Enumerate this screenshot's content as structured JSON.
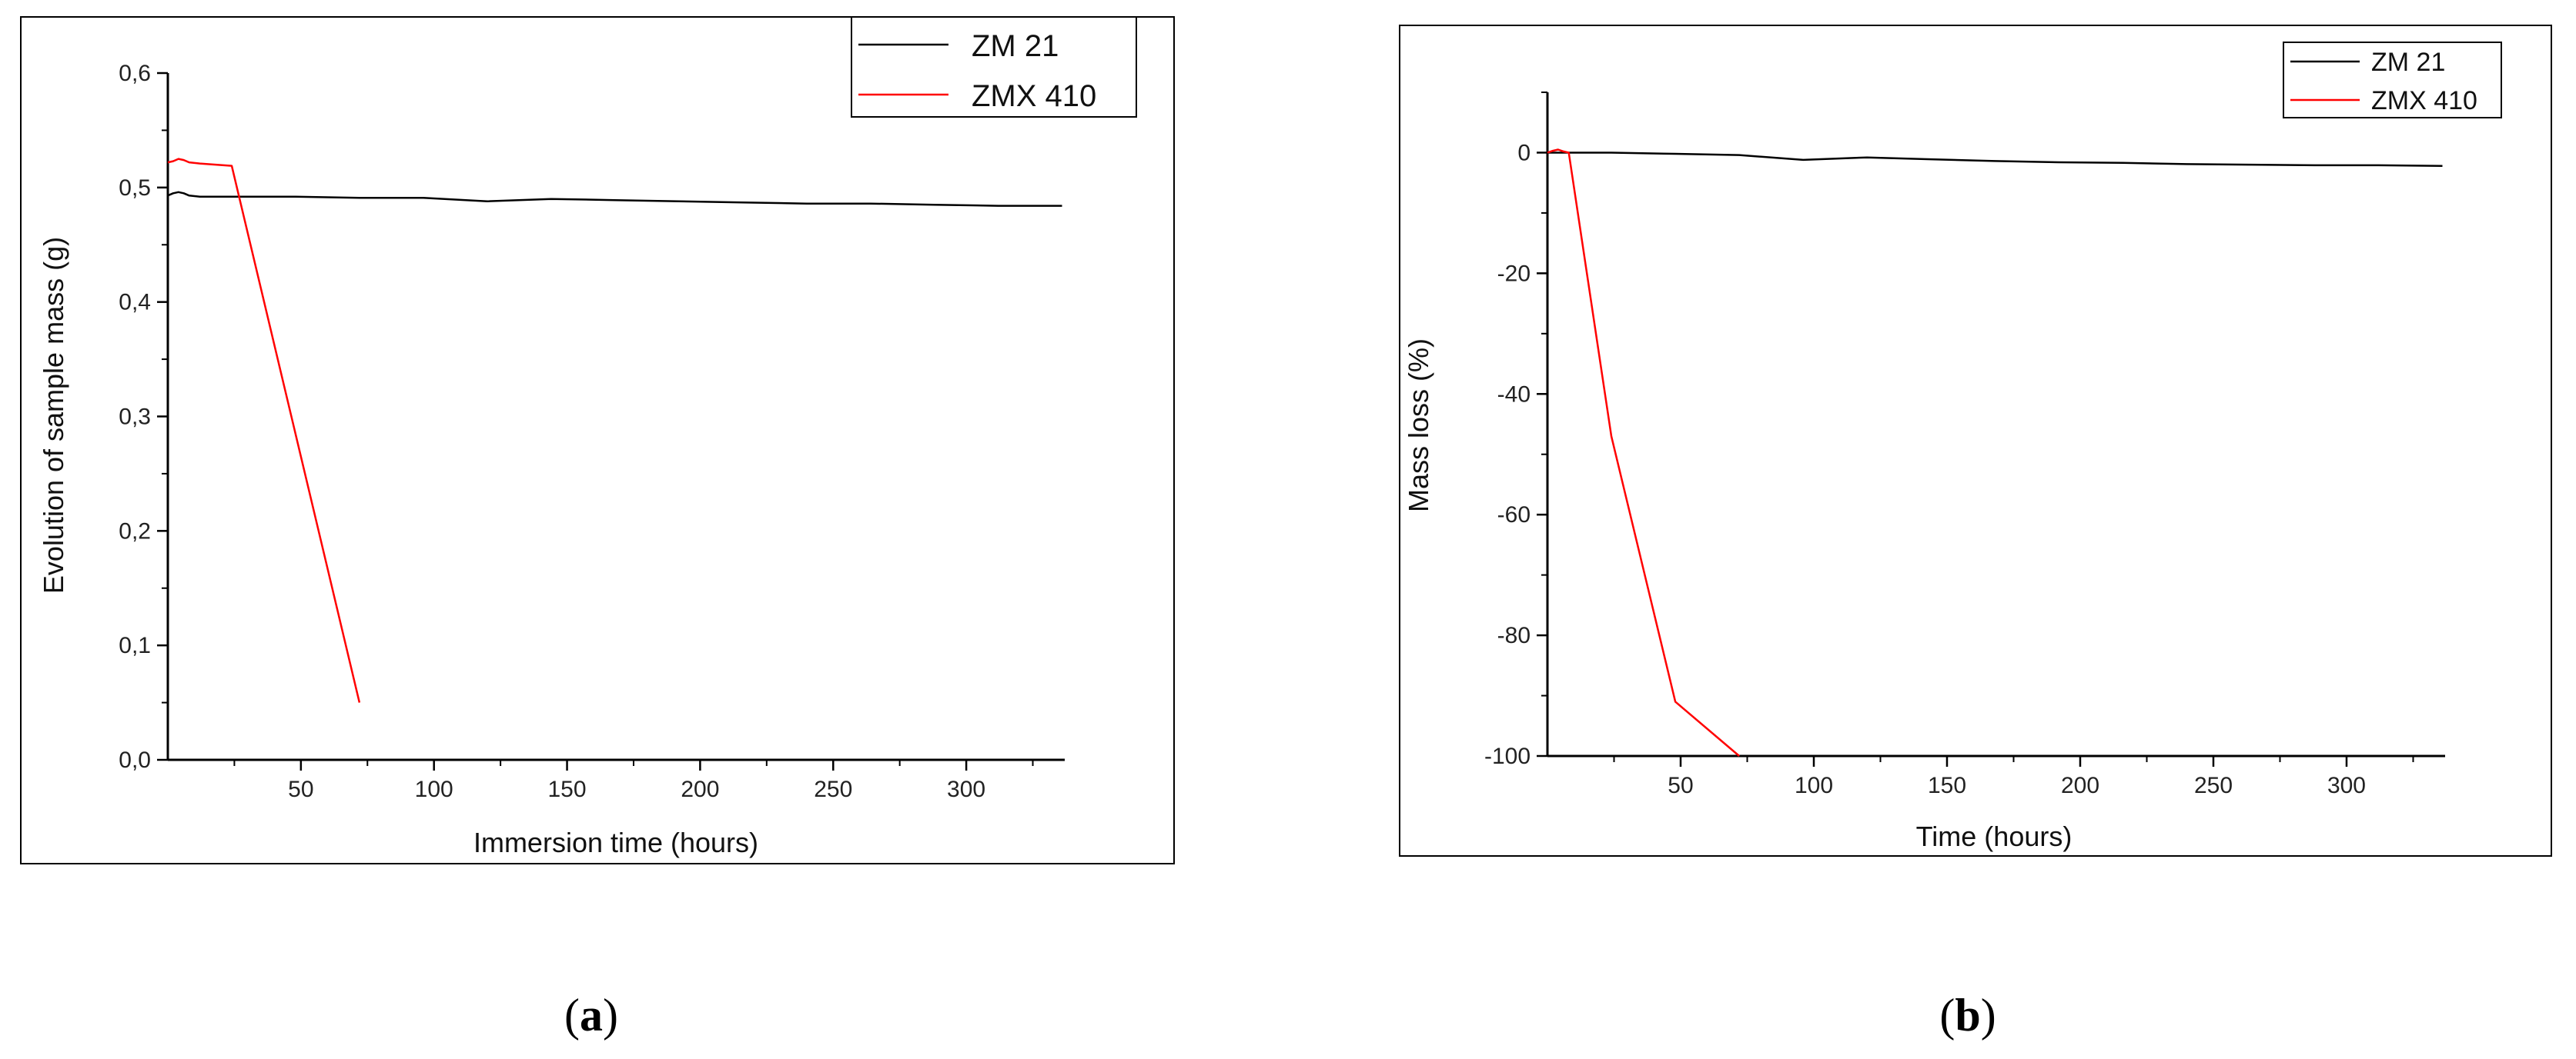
{
  "chart_data": [
    {
      "type": "line",
      "panel_label": "a",
      "title": "",
      "xlabel": "Immersion time (hours)",
      "ylabel": "Evolution of sample mass (g)",
      "xlim": [
        0,
        337
      ],
      "ylim": [
        0.0,
        0.6
      ],
      "xticks": [
        50,
        100,
        150,
        200,
        250,
        300
      ],
      "xtick_labels": [
        "50",
        "100",
        "150",
        "200",
        "250",
        "300"
      ],
      "yticks": [
        0.0,
        0.1,
        0.2,
        0.3,
        0.4,
        0.5,
        0.6
      ],
      "ytick_labels": [
        "0,0",
        "0,1",
        "0,2",
        "0,3",
        "0,4",
        "0,5",
        "0,6"
      ],
      "grid": false,
      "legend_position": "top-right",
      "series": [
        {
          "name": "ZM 21",
          "color": "#000000",
          "x": [
            0,
            2,
            4,
            6,
            8,
            12,
            24,
            48,
            72,
            96,
            120,
            144,
            168,
            192,
            216,
            240,
            264,
            288,
            312,
            336
          ],
          "y": [
            0.493,
            0.495,
            0.496,
            0.495,
            0.493,
            0.492,
            0.492,
            0.492,
            0.491,
            0.491,
            0.488,
            0.49,
            0.489,
            0.488,
            0.487,
            0.486,
            0.486,
            0.485,
            0.484,
            0.484
          ]
        },
        {
          "name": "ZMX 410",
          "color": "#ff0000",
          "x": [
            0,
            2,
            4,
            6,
            8,
            12,
            24,
            72
          ],
          "y": [
            0.522,
            0.523,
            0.525,
            0.524,
            0.522,
            0.521,
            0.519,
            0.05
          ]
        }
      ]
    },
    {
      "type": "line",
      "panel_label": "b",
      "title": "",
      "xlabel": "Time (hours)",
      "ylabel": "Mass loss (%)",
      "xlim": [
        0,
        337
      ],
      "ylim": [
        -100,
        10
      ],
      "xticks": [
        50,
        100,
        150,
        200,
        250,
        300
      ],
      "xtick_labels": [
        "50",
        "100",
        "150",
        "200",
        "250",
        "300"
      ],
      "yticks": [
        -100,
        -80,
        -60,
        -40,
        -20,
        0
      ],
      "ytick_labels": [
        "-100",
        "-80",
        "-60",
        "-40",
        "-20",
        "0"
      ],
      "grid": false,
      "legend_position": "top-right",
      "series": [
        {
          "name": "ZM 21",
          "color": "#000000",
          "x": [
            0,
            24,
            48,
            72,
            96,
            120,
            144,
            168,
            192,
            216,
            240,
            264,
            288,
            312,
            336
          ],
          "y": [
            0,
            0,
            -0.2,
            -0.4,
            -1.2,
            -0.8,
            -1.1,
            -1.4,
            -1.6,
            -1.7,
            -1.9,
            -2.0,
            -2.1,
            -2.1,
            -2.2
          ]
        },
        {
          "name": "ZMX 410",
          "color": "#ff0000",
          "x": [
            0,
            2,
            4,
            6,
            8,
            24,
            48,
            72
          ],
          "y": [
            0,
            0.3,
            0.5,
            0.2,
            0,
            -47,
            -91,
            -100
          ]
        }
      ]
    }
  ]
}
